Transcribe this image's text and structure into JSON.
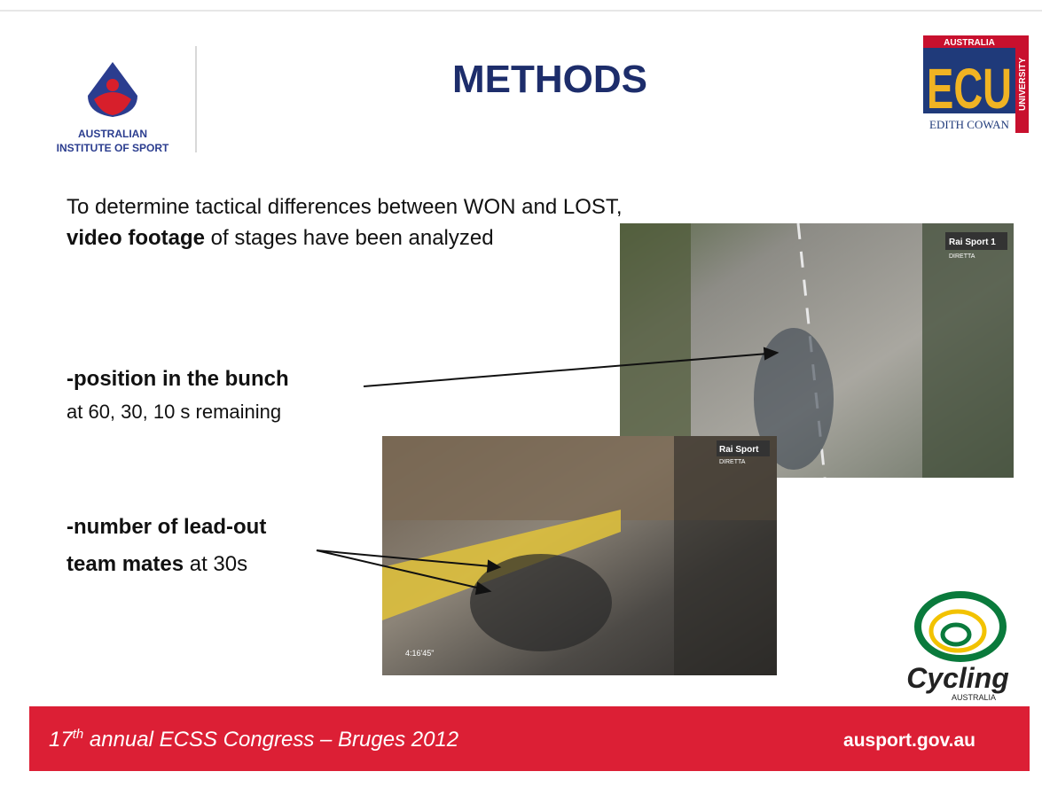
{
  "logos": {
    "ais": {
      "line1": "AUSTRALIAN",
      "line2": "INSTITUTE OF SPORT"
    },
    "ecu": {
      "top": "AUSTRALIA",
      "letters": "ECU",
      "bottom": "EDITH COWAN",
      "side": "UNIVERSITY"
    },
    "cycling": {
      "word": "Cycling",
      "sub": "AUSTRALIA"
    }
  },
  "header": {
    "title": "METHODS"
  },
  "intro": {
    "line1": "To determine tactical differences between WON and LOST,",
    "line2_bold": "video footage",
    "line2_rest": " of stages have been analyzed"
  },
  "bullets": [
    {
      "bold": "-position in the bunch",
      "rest": "at 60, 30, 10 s remaining"
    },
    {
      "bold1": "-number of lead-out",
      "bold2": "team mates",
      "rest": " at 30s"
    }
  ],
  "photos": {
    "top": {
      "channel": "Rai Sport 1",
      "live": "DIRETTA"
    },
    "bottom": {
      "channel": "Rai Sport",
      "live": "DIRETTA",
      "time": "4:16'45\""
    }
  },
  "footer": {
    "number": "17",
    "suffix": "th",
    "event": " annual ECSS Congress – Bruges 2012",
    "url": "ausport.gov.au"
  }
}
